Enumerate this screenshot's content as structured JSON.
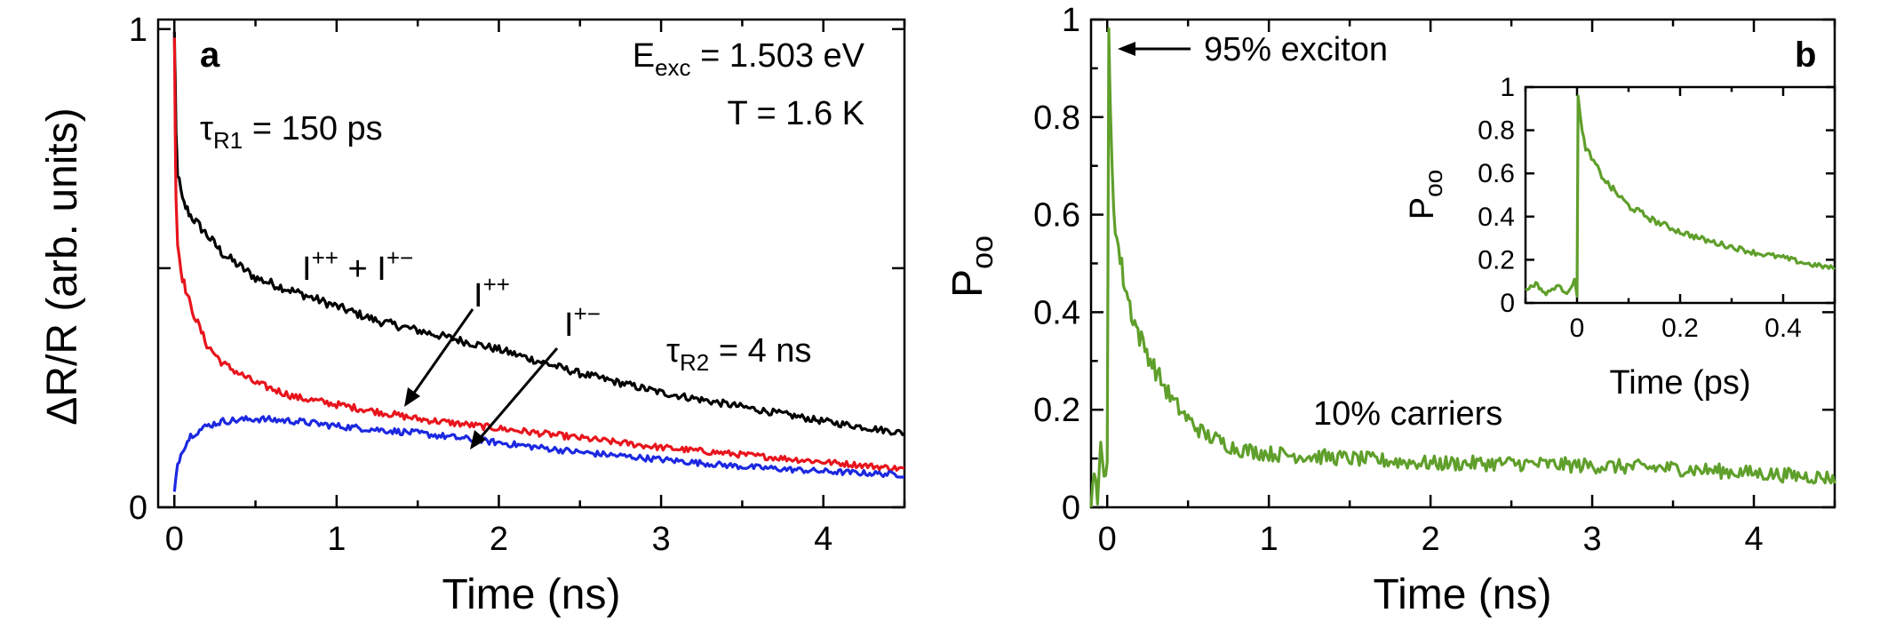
{
  "chart_data": [
    {
      "type": "line",
      "panel": "a",
      "xlabel": "Time (ns)",
      "ylabel": "ΔR/R (arb. units)",
      "xlim": [
        -0.1,
        4.5
      ],
      "ylim": [
        0,
        1.02
      ],
      "x_ticks": [
        0,
        1,
        2,
        3,
        4
      ],
      "x_tick_labels": [
        "0",
        "1",
        "2",
        "3",
        "4"
      ],
      "y_ticks": [
        0,
        0.5,
        1
      ],
      "y_tick_labels": [
        "0",
        "",
        "1"
      ],
      "annotations": {
        "eexc_prefix": "E",
        "eexc_sub": "exc",
        "eexc_value": " = 1.503 eV",
        "temperature": "T = 1.6 K",
        "tau1_symbol": "τ",
        "tau1_sub": "R1",
        "tau1_value": " = 150 ps",
        "tau2_symbol": "τ",
        "tau2_sub": "R2",
        "tau2_value": " = 4 ns",
        "sum_label_a": "I",
        "sum_label_a_sup": "++",
        "sum_label_plus": " + ",
        "sum_label_b": "I",
        "sum_label_b_sup": "+−",
        "ipp_label": "I",
        "ipp_sup": "++",
        "ipm_label": "I",
        "ipm_sup": "+−"
      },
      "series": [
        {
          "color": "#000000",
          "x": [
            0,
            0.005,
            0.01,
            0.02,
            0.05,
            0.1,
            0.2,
            0.3,
            0.5,
            0.75,
            1.0,
            1.25,
            1.5,
            1.75,
            2.0,
            2.5,
            3.0,
            3.5,
            4.0,
            4.5
          ],
          "y": [
            0.99,
            0.9,
            0.78,
            0.7,
            0.64,
            0.61,
            0.57,
            0.53,
            0.48,
            0.45,
            0.42,
            0.39,
            0.37,
            0.35,
            0.33,
            0.28,
            0.24,
            0.21,
            0.18,
            0.155
          ]
        },
        {
          "color": "#e8141c",
          "x": [
            0,
            0.005,
            0.01,
            0.02,
            0.05,
            0.1,
            0.2,
            0.3,
            0.5,
            0.75,
            1.0,
            1.25,
            1.5,
            2.0,
            2.5,
            3.0,
            3.5,
            4.0,
            4.5
          ],
          "y": [
            0.99,
            0.8,
            0.65,
            0.55,
            0.48,
            0.42,
            0.34,
            0.3,
            0.26,
            0.23,
            0.215,
            0.2,
            0.185,
            0.165,
            0.145,
            0.125,
            0.11,
            0.095,
            0.08
          ]
        },
        {
          "color": "#1c28e0",
          "x": [
            0,
            0.02,
            0.05,
            0.1,
            0.2,
            0.3,
            0.5,
            0.75,
            1.0,
            1.5,
            2.0,
            2.5,
            3.0,
            3.5,
            4.0,
            4.5
          ],
          "y": [
            0.03,
            0.09,
            0.12,
            0.15,
            0.17,
            0.18,
            0.185,
            0.18,
            0.17,
            0.155,
            0.135,
            0.115,
            0.1,
            0.085,
            0.075,
            0.068
          ]
        }
      ]
    },
    {
      "type": "line",
      "panel": "b",
      "xlabel": "Time (ns)",
      "ylabel_main": "P",
      "ylabel_sub": "oo",
      "xlim": [
        -0.1,
        4.5
      ],
      "ylim": [
        0,
        1
      ],
      "x_ticks": [
        0,
        1,
        2,
        3,
        4
      ],
      "x_tick_labels": [
        "0",
        "1",
        "2",
        "3",
        "4"
      ],
      "y_ticks": [
        0,
        0.2,
        0.4,
        0.6,
        0.8,
        1
      ],
      "y_tick_labels": [
        "0",
        "0.2",
        "0.4",
        "0.6",
        "0.8",
        "1"
      ],
      "annotations": {
        "exciton": "95% exciton",
        "carriers": "10% carriers"
      },
      "series": [
        {
          "color": "#5f9f2b",
          "x": [
            -0.1,
            -0.08,
            -0.06,
            -0.04,
            -0.02,
            0.0,
            0.01,
            0.02,
            0.04,
            0.06,
            0.1,
            0.15,
            0.2,
            0.3,
            0.4,
            0.5,
            0.6,
            0.8,
            1.0,
            1.5,
            2.0,
            2.5,
            3.0,
            3.5,
            4.0,
            4.5
          ],
          "y": [
            0.0,
            0.08,
            0.02,
            0.12,
            0.06,
            0.1,
            0.95,
            0.8,
            0.62,
            0.55,
            0.47,
            0.4,
            0.35,
            0.28,
            0.22,
            0.18,
            0.15,
            0.12,
            0.11,
            0.1,
            0.09,
            0.09,
            0.085,
            0.08,
            0.07,
            0.06
          ]
        }
      ]
    },
    {
      "type": "line",
      "panel": "b-inset",
      "xlabel": "Time (ps)",
      "ylabel_main": "P",
      "ylabel_sub": "oo",
      "xlim": [
        -0.1,
        0.5
      ],
      "ylim": [
        0,
        1
      ],
      "x_ticks": [
        0,
        0.2,
        0.4
      ],
      "x_tick_labels": [
        "0",
        "0.2",
        "0.4"
      ],
      "y_ticks": [
        0,
        0.2,
        0.4,
        0.6,
        0.8,
        1
      ],
      "y_tick_labels": [
        "0",
        "0.2",
        "0.4",
        "0.6",
        "0.8",
        "1"
      ],
      "series": [
        {
          "color": "#5f9f2b",
          "x": [
            -0.1,
            -0.08,
            -0.06,
            -0.04,
            -0.02,
            -0.005,
            0.0,
            0.002,
            0.01,
            0.02,
            0.04,
            0.06,
            0.08,
            0.1,
            0.15,
            0.2,
            0.25,
            0.3,
            0.35,
            0.4,
            0.45,
            0.5
          ],
          "y": [
            0.06,
            0.09,
            0.04,
            0.08,
            0.05,
            0.1,
            0.04,
            0.95,
            0.78,
            0.7,
            0.62,
            0.55,
            0.5,
            0.45,
            0.38,
            0.33,
            0.29,
            0.26,
            0.23,
            0.21,
            0.18,
            0.16
          ]
        }
      ]
    }
  ]
}
